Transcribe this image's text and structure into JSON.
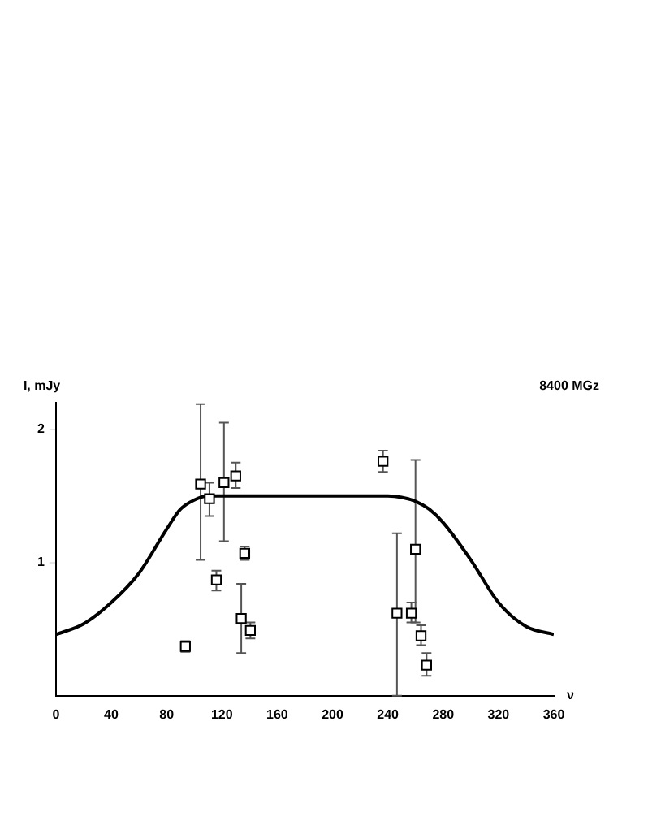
{
  "chart_data": {
    "type": "scatter",
    "title": "8400 MGz",
    "ylabel": "I, mJy",
    "xlabel": "ν",
    "xlim": [
      0,
      360
    ],
    "xticks": [
      0,
      40,
      80,
      120,
      160,
      200,
      240,
      280,
      320,
      360
    ],
    "ylim": [
      0,
      2.2
    ],
    "yticks": [
      1,
      2
    ],
    "grid": false,
    "legend": false,
    "series": [
      {
        "type": "scatter",
        "marker": "square",
        "color": "#000000",
        "x": [
          93.6,
          104.6,
          111,
          116,
          121.5,
          130,
          136.5,
          134,
          140.6,
          236.5,
          246.6,
          257,
          260,
          264,
          268
        ],
        "values": [
          0.37,
          1.59,
          1.48,
          0.87,
          1.6,
          1.65,
          1.07,
          0.58,
          0.49,
          1.76,
          0.62,
          0.62,
          1.1,
          0.45,
          0.23
        ],
        "errors": [
          [
            0.33,
            0.41
          ],
          [
            1.02,
            2.19
          ],
          [
            1.35,
            1.6
          ],
          [
            0.79,
            0.94
          ],
          [
            1.16,
            2.05
          ],
          [
            1.56,
            1.75
          ],
          [
            1.02,
            1.12
          ],
          [
            0.32,
            0.84
          ],
          [
            0.43,
            0.55
          ],
          [
            1.68,
            1.84
          ],
          [
            0,
            1.22
          ],
          [
            0.55,
            0.7
          ],
          [
            0.55,
            1.77
          ],
          [
            0.38,
            0.53
          ],
          [
            0.15,
            0.32
          ]
        ]
      },
      {
        "type": "line",
        "marker": "none",
        "color": "#000000",
        "x": [
          0,
          20,
          40,
          60,
          80,
          90,
          100,
          110,
          120,
          180,
          240,
          250,
          260,
          270,
          280,
          300,
          320,
          340,
          360
        ],
        "values": [
          0.46,
          0.54,
          0.7,
          0.92,
          1.25,
          1.4,
          1.47,
          1.5,
          1.5,
          1.5,
          1.5,
          1.49,
          1.46,
          1.4,
          1.3,
          1.02,
          0.7,
          0.52,
          0.46
        ]
      }
    ]
  }
}
